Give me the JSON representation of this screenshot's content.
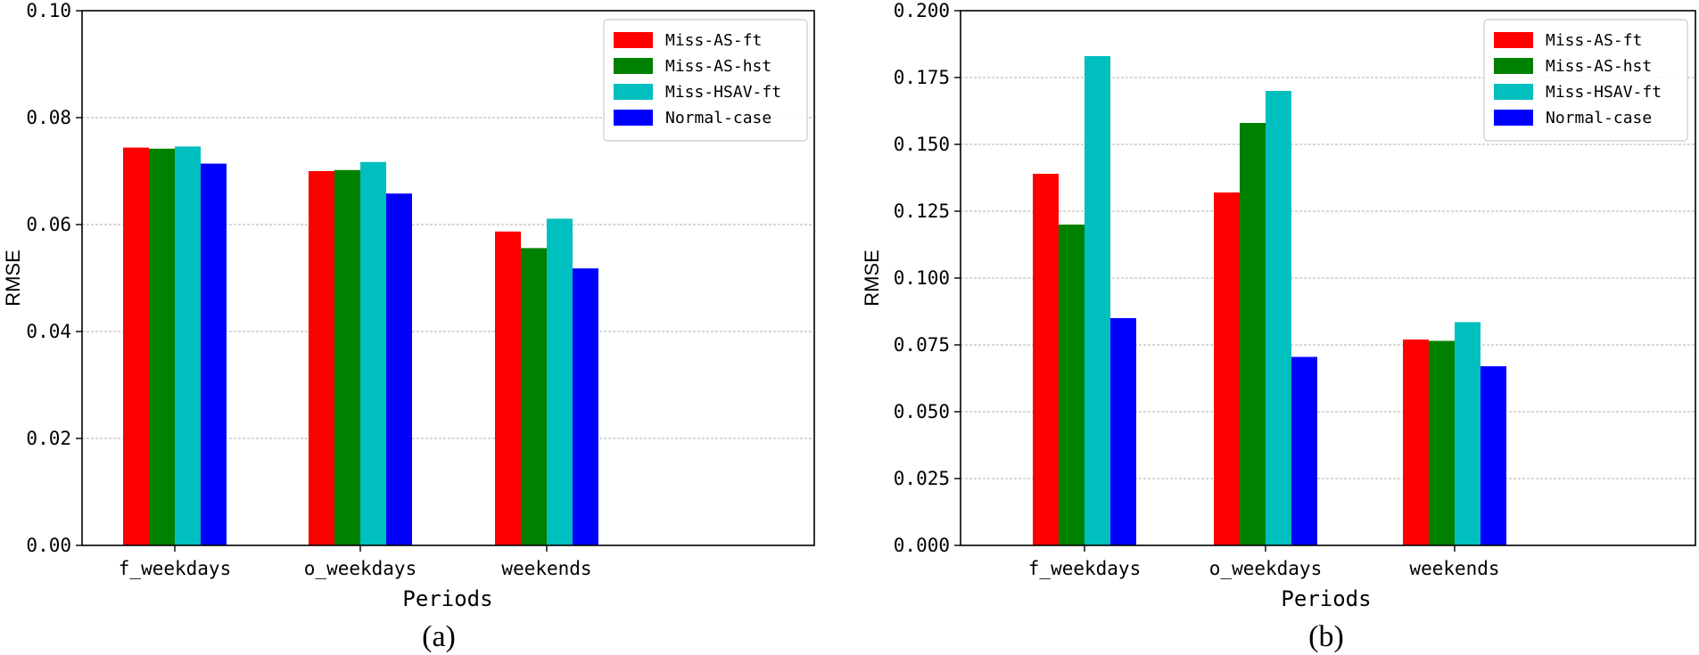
{
  "chart_data": [
    {
      "type": "bar",
      "caption": "(a)",
      "xlabel": "Periods",
      "ylabel": "RMSE",
      "categories": [
        "f_weekdays",
        "o_weekdays",
        "weekends"
      ],
      "ylim": [
        0,
        0.1
      ],
      "yticks": [
        0.0,
        0.02,
        0.04,
        0.06,
        0.08,
        0.1
      ],
      "ytick_labels": [
        "0.00",
        "0.02",
        "0.04",
        "0.06",
        "0.08",
        "0.10"
      ],
      "grid": true,
      "legend_position": "top-right",
      "series": [
        {
          "name": "Miss-AS-ft",
          "color": "#ff0000",
          "values": [
            0.0744,
            0.07,
            0.0587
          ]
        },
        {
          "name": "Miss-AS-hst",
          "color": "#008000",
          "values": [
            0.0742,
            0.0702,
            0.0556
          ]
        },
        {
          "name": "Miss-HSAV-ft",
          "color": "#00bfbf",
          "values": [
            0.0746,
            0.0717,
            0.0611
          ]
        },
        {
          "name": "Normal-case",
          "color": "#0000ff",
          "values": [
            0.0714,
            0.0658,
            0.0518
          ]
        }
      ]
    },
    {
      "type": "bar",
      "caption": "(b)",
      "xlabel": "Periods",
      "ylabel": "RMSE",
      "categories": [
        "f_weekdays",
        "o_weekdays",
        "weekends"
      ],
      "ylim": [
        0,
        0.2
      ],
      "yticks": [
        0.0,
        0.025,
        0.05,
        0.075,
        0.1,
        0.125,
        0.15,
        0.175,
        0.2
      ],
      "ytick_labels": [
        "0.000",
        "0.025",
        "0.050",
        "0.075",
        "0.100",
        "0.125",
        "0.150",
        "0.175",
        "0.200"
      ],
      "grid": true,
      "legend_position": "top-right",
      "series": [
        {
          "name": "Miss-AS-ft",
          "color": "#ff0000",
          "values": [
            0.139,
            0.132,
            0.077
          ]
        },
        {
          "name": "Miss-AS-hst",
          "color": "#008000",
          "values": [
            0.12,
            0.158,
            0.0765
          ]
        },
        {
          "name": "Miss-HSAV-ft",
          "color": "#00bfbf",
          "values": [
            0.183,
            0.17,
            0.0835
          ]
        },
        {
          "name": "Normal-case",
          "color": "#0000ff",
          "values": [
            0.085,
            0.0705,
            0.067
          ]
        }
      ]
    }
  ]
}
